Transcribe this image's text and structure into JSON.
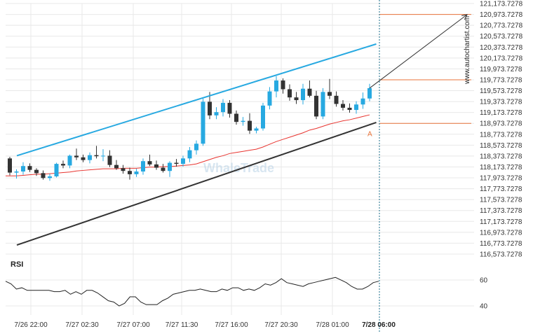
{
  "chart_data": [
    {
      "type": "candlestick",
      "title": "",
      "ylim": [
        116573.7278,
        121173.7278
      ],
      "y_ticks": [
        "121,173.7278",
        "120,973.7278",
        "120,773.7278",
        "120,573.7278",
        "120,373.7278",
        "120,173.7278",
        "119,973.7278",
        "119,773.7278",
        "119,573.7278",
        "119,373.7278",
        "119,173.7278",
        "118,973.7278",
        "118,773.7278",
        "118,573.7278",
        "118,373.7278",
        "118,173.7278",
        "117,973.7278",
        "117,773.7278",
        "117,573.7278",
        "117,373.7278",
        "117,173.7278",
        "116,973.7278",
        "116,773.7278",
        "116,573.7278"
      ],
      "x_ticks": [
        "7/26 22:00",
        "7/27 02:30",
        "7/27 07:00",
        "7/27 11:30",
        "7/27 16:00",
        "7/27 20:30",
        "7/28 01:00",
        "7/28 06:00"
      ],
      "grid": true,
      "candles": [
        {
          "o": 118330,
          "h": 118360,
          "l": 118020,
          "c": 118070
        },
        {
          "o": 118070,
          "h": 118130,
          "l": 117960,
          "c": 118090
        },
        {
          "o": 118090,
          "h": 118260,
          "l": 118030,
          "c": 118190
        },
        {
          "o": 118190,
          "h": 118240,
          "l": 118080,
          "c": 118120
        },
        {
          "o": 118120,
          "h": 118150,
          "l": 118010,
          "c": 118060
        },
        {
          "o": 118060,
          "h": 118110,
          "l": 117940,
          "c": 117970
        },
        {
          "o": 117970,
          "h": 118050,
          "l": 117920,
          "c": 118000
        },
        {
          "o": 118000,
          "h": 118250,
          "l": 117980,
          "c": 118230
        },
        {
          "o": 118230,
          "h": 118290,
          "l": 118150,
          "c": 118200
        },
        {
          "o": 118200,
          "h": 118400,
          "l": 118150,
          "c": 118380
        },
        {
          "o": 118380,
          "h": 118510,
          "l": 118300,
          "c": 118350
        },
        {
          "o": 118350,
          "h": 118400,
          "l": 118260,
          "c": 118300
        },
        {
          "o": 118300,
          "h": 118440,
          "l": 118240,
          "c": 118390
        },
        {
          "o": 118390,
          "h": 118560,
          "l": 118330,
          "c": 118370
        },
        {
          "o": 118370,
          "h": 118500,
          "l": 118280,
          "c": 118380
        },
        {
          "o": 118380,
          "h": 118480,
          "l": 118170,
          "c": 118210
        },
        {
          "o": 118210,
          "h": 118300,
          "l": 118120,
          "c": 118150
        },
        {
          "o": 118150,
          "h": 118210,
          "l": 118050,
          "c": 118100
        },
        {
          "o": 118100,
          "h": 118160,
          "l": 117940,
          "c": 118040
        },
        {
          "o": 118040,
          "h": 118140,
          "l": 117990,
          "c": 118090
        },
        {
          "o": 118090,
          "h": 118330,
          "l": 118030,
          "c": 118280
        },
        {
          "o": 118280,
          "h": 118400,
          "l": 118190,
          "c": 118220
        },
        {
          "o": 118220,
          "h": 118290,
          "l": 118120,
          "c": 118160
        },
        {
          "o": 118160,
          "h": 118230,
          "l": 118070,
          "c": 118100
        },
        {
          "o": 118100,
          "h": 118280,
          "l": 117990,
          "c": 118250
        },
        {
          "o": 118250,
          "h": 118320,
          "l": 118180,
          "c": 118230
        },
        {
          "o": 118230,
          "h": 118380,
          "l": 118180,
          "c": 118330
        },
        {
          "o": 118330,
          "h": 118540,
          "l": 118260,
          "c": 118480
        },
        {
          "o": 118480,
          "h": 118660,
          "l": 118400,
          "c": 118600
        },
        {
          "o": 118600,
          "h": 119430,
          "l": 118560,
          "c": 119370
        },
        {
          "o": 119370,
          "h": 119550,
          "l": 119050,
          "c": 119120
        },
        {
          "o": 119120,
          "h": 119270,
          "l": 119050,
          "c": 119180
        },
        {
          "o": 119180,
          "h": 119420,
          "l": 119100,
          "c": 119350
        },
        {
          "o": 119350,
          "h": 119400,
          "l": 119080,
          "c": 119150
        },
        {
          "o": 119150,
          "h": 119210,
          "l": 118950,
          "c": 119000
        },
        {
          "o": 119000,
          "h": 119090,
          "l": 118930,
          "c": 119020
        },
        {
          "o": 119020,
          "h": 119160,
          "l": 118780,
          "c": 118840
        },
        {
          "o": 118840,
          "h": 118910,
          "l": 118790,
          "c": 118880
        },
        {
          "o": 118880,
          "h": 119350,
          "l": 118840,
          "c": 119300
        },
        {
          "o": 119300,
          "h": 119640,
          "l": 119230,
          "c": 119560
        },
        {
          "o": 119560,
          "h": 119840,
          "l": 119450,
          "c": 119760
        },
        {
          "o": 119760,
          "h": 119800,
          "l": 119520,
          "c": 119600
        },
        {
          "o": 119600,
          "h": 119690,
          "l": 119390,
          "c": 119450
        },
        {
          "o": 119450,
          "h": 119550,
          "l": 119330,
          "c": 119400
        },
        {
          "o": 119400,
          "h": 119700,
          "l": 119320,
          "c": 119610
        },
        {
          "o": 119610,
          "h": 119760,
          "l": 119450,
          "c": 119480
        },
        {
          "o": 119480,
          "h": 119570,
          "l": 119050,
          "c": 119100
        },
        {
          "o": 119100,
          "h": 119620,
          "l": 119050,
          "c": 119550
        },
        {
          "o": 119550,
          "h": 119790,
          "l": 119420,
          "c": 119480
        },
        {
          "o": 119480,
          "h": 119560,
          "l": 119280,
          "c": 119330
        },
        {
          "o": 119330,
          "h": 119400,
          "l": 119210,
          "c": 119260
        },
        {
          "o": 119260,
          "h": 119340,
          "l": 119170,
          "c": 119220
        },
        {
          "o": 119220,
          "h": 119380,
          "l": 119150,
          "c": 119320
        },
        {
          "o": 119320,
          "h": 119540,
          "l": 119240,
          "c": 119430
        },
        {
          "o": 119430,
          "h": 119700,
          "l": 119380,
          "c": 119620
        }
      ],
      "moving_average": {
        "color": "#e8342f",
        "values": [
          118010,
          118010,
          118020,
          118030,
          118040,
          118040,
          118050,
          118060,
          118070,
          118080,
          118100,
          118110,
          118120,
          118130,
          118140,
          118140,
          118140,
          118150,
          118150,
          118150,
          118160,
          118170,
          118170,
          118180,
          118180,
          118190,
          118200,
          118210,
          118230,
          118270,
          118310,
          118350,
          118380,
          118420,
          118440,
          118460,
          118480,
          118500,
          118540,
          118590,
          118640,
          118680,
          118720,
          118760,
          118800,
          118850,
          118880,
          118920,
          118960,
          118990,
          119020,
          119040,
          119070,
          119100,
          119130
        ]
      },
      "channel": {
        "upper": {
          "color": "#27a9e1",
          "points": [
            [
              0,
              118380
            ],
            [
              55,
              120430
            ]
          ]
        },
        "lower": {
          "color": "#333333",
          "points": [
            [
              0,
              116740
            ],
            [
              55,
              118990
            ]
          ]
        }
      },
      "levels": [
        {
          "color": "#e8733a",
          "value": 120973.7278
        },
        {
          "color": "#e8733a",
          "value": 119773.7278
        },
        {
          "color": "#e8733a",
          "value": 118973.7278
        }
      ],
      "projection_arrow": {
        "color": "#333333",
        "from": [
          54,
          119620
        ],
        "to": [
          64,
          120970
        ]
      },
      "point_label": "A",
      "colors": {
        "up": "#27a9e1",
        "down": "#333333",
        "grid": "#e8e8e8",
        "marker": "#1a6e8a"
      }
    },
    {
      "type": "line",
      "title": "RSI",
      "ylim": [
        33,
        67
      ],
      "y_ticks": [
        "60",
        "40"
      ],
      "values": [
        59,
        57,
        53,
        54,
        52,
        52,
        52,
        52,
        52,
        51,
        51,
        52,
        49,
        51,
        49,
        52,
        52,
        50,
        47,
        44,
        43,
        40,
        42,
        47,
        47,
        43,
        41,
        41,
        41,
        44,
        46,
        49,
        50,
        51,
        52,
        52,
        53,
        52,
        51,
        51,
        53,
        52,
        54,
        54,
        52,
        53,
        52,
        54,
        57,
        56,
        58,
        61,
        58,
        57,
        56,
        55,
        57,
        58,
        59,
        60,
        61,
        62,
        60,
        58,
        55,
        53,
        53,
        55,
        58,
        59
      ]
    }
  ],
  "watermark": {
    "side": "www.autochartist.com",
    "center": "WhaleTrade"
  }
}
